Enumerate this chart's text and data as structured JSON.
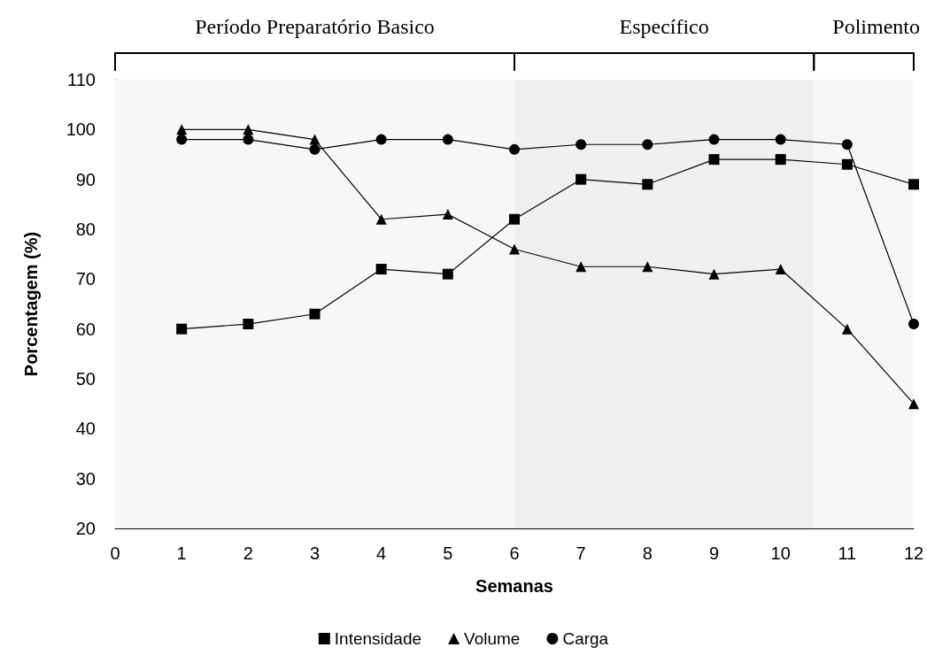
{
  "chart_data": {
    "type": "line",
    "xlabel": "Semanas",
    "ylabel": "Porcentagem (%)",
    "x": [
      1,
      2,
      3,
      4,
      5,
      6,
      7,
      8,
      9,
      10,
      11,
      12
    ],
    "series": [
      {
        "name": "Intensidade",
        "color": "#000000",
        "marker": "square",
        "values": [
          60,
          61,
          63,
          72,
          71,
          82,
          90,
          89,
          94,
          94,
          93,
          89
        ]
      },
      {
        "name": "Volume",
        "color": "#000000",
        "marker": "triangle",
        "values": [
          100,
          100,
          98,
          82,
          83,
          76,
          72.5,
          72.5,
          71,
          72,
          60,
          45
        ]
      },
      {
        "name": "Carga",
        "color": "#000000",
        "marker": "circle",
        "values": [
          98,
          98,
          96,
          98,
          98,
          96,
          97,
          97,
          98,
          98,
          97,
          61
        ]
      }
    ],
    "xlim": [
      0,
      12
    ],
    "xticks": [
      0,
      1,
      2,
      3,
      4,
      5,
      6,
      7,
      8,
      9,
      10,
      11,
      12
    ],
    "ylim": [
      20,
      110
    ],
    "yticks": [
      20,
      30,
      40,
      50,
      60,
      70,
      80,
      90,
      100,
      110
    ],
    "bands": [
      {
        "axis": "x",
        "from": 0,
        "to": 6,
        "label": "Período Preparatório Basico",
        "color": "#f7f7f7"
      },
      {
        "axis": "x",
        "from": 6,
        "to": 10.5,
        "label": "Específico",
        "color": "#f0f0f0"
      },
      {
        "axis": "x",
        "from": 10.5,
        "to": 12,
        "label": "Polimento",
        "color": "#f7f7f7"
      }
    ],
    "grid": false,
    "legend": "bottom",
    "line_style": "solid"
  }
}
